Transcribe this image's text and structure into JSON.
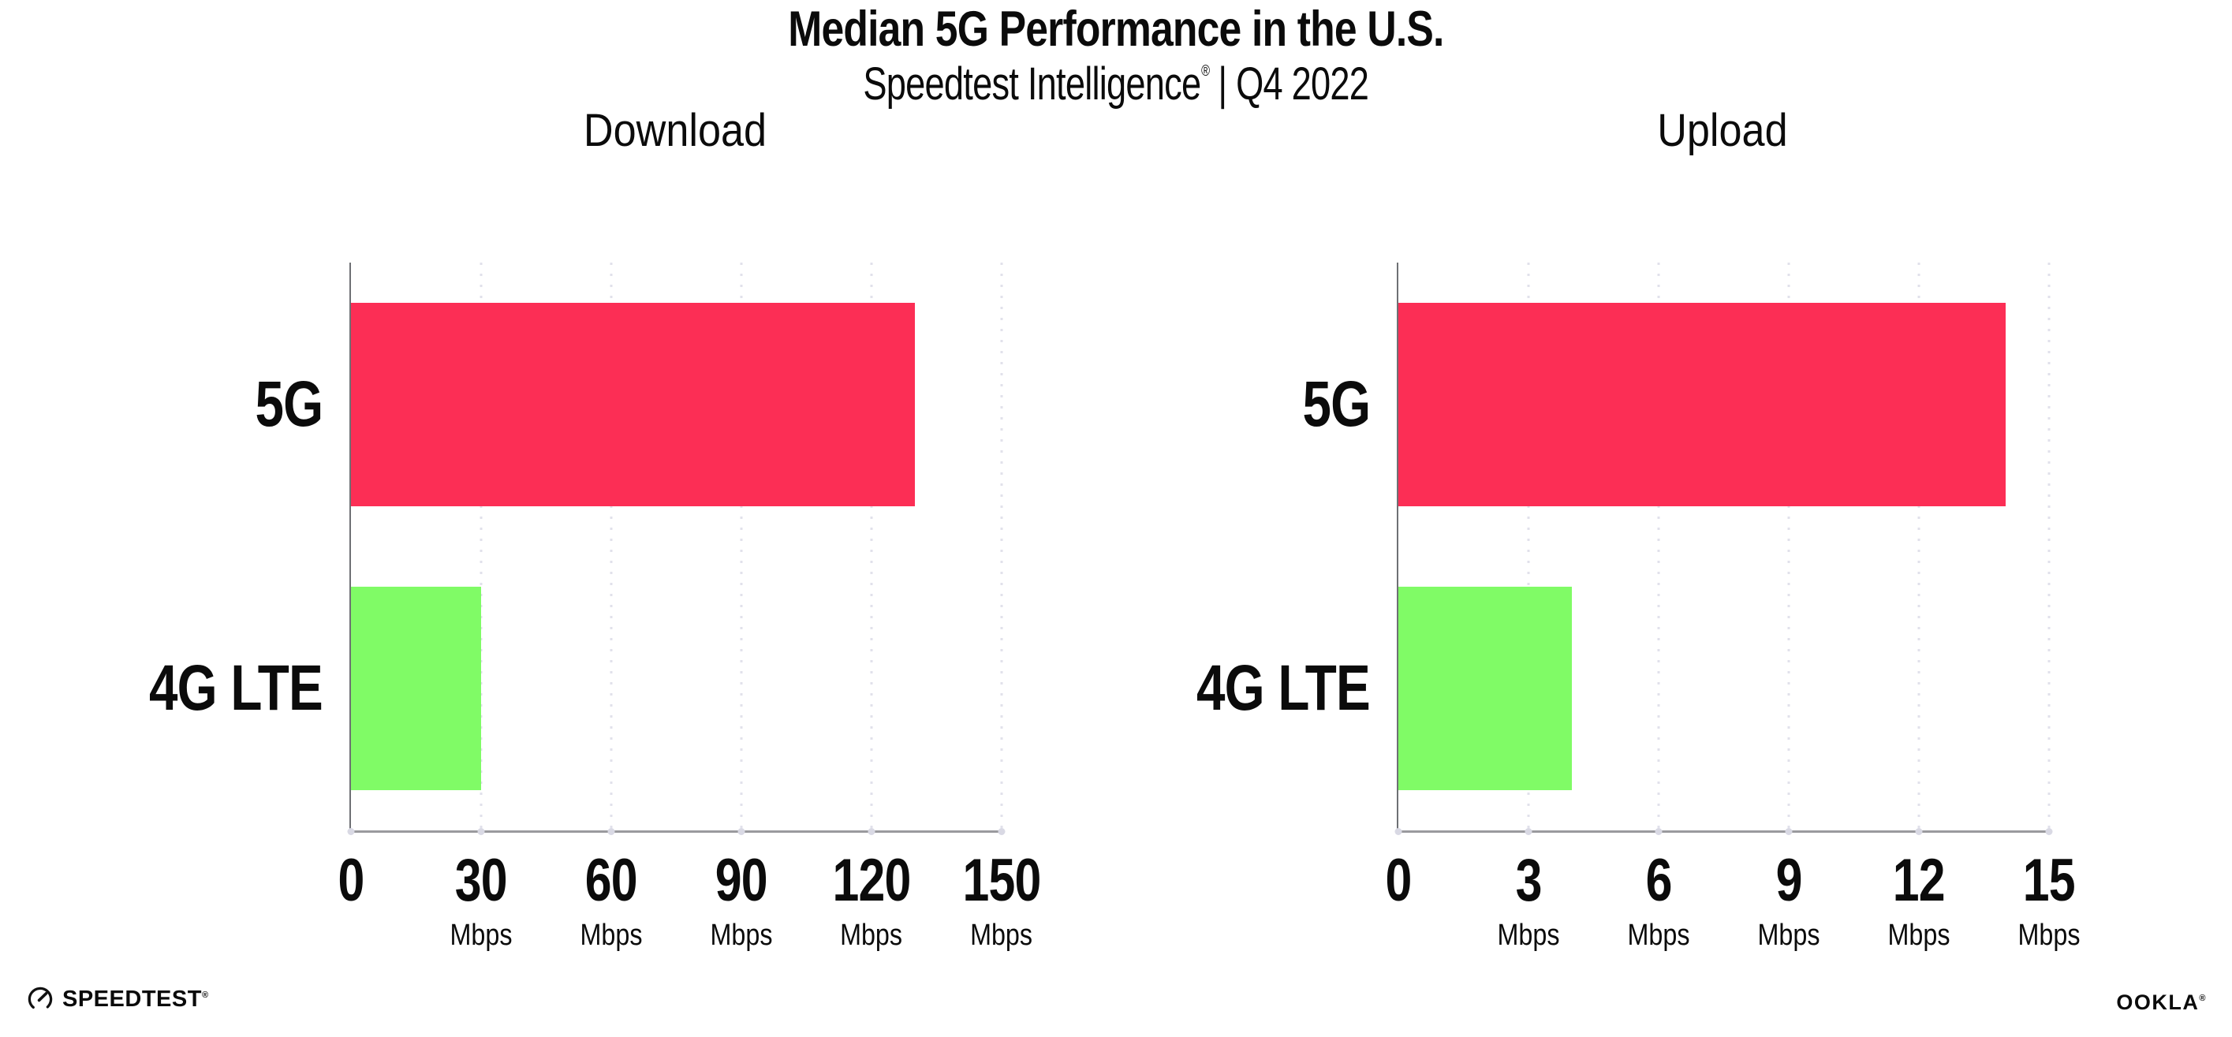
{
  "header": {
    "title": "Median 5G Performance in the U.S.",
    "subtitle_brand": "Speedtest Intelligence",
    "subtitle_reg": "®",
    "subtitle_rest": " | Q4 2022"
  },
  "colors": {
    "bar_5g": "#fc2e55",
    "bar_4g_lte": "#80fb66",
    "axis_line": "#9a9a9e",
    "axis_spine": "#6e7074",
    "gridline": "#e1e1eb",
    "text": "#0b0b0b"
  },
  "chart_data": [
    {
      "type": "bar",
      "orientation": "horizontal",
      "title": "Download",
      "categories": [
        "5G",
        "4G LTE"
      ],
      "values": [
        130,
        30
      ],
      "unit": "Mbps",
      "xlim": [
        0,
        150
      ],
      "xticks": [
        0,
        30,
        60,
        90,
        120,
        150
      ],
      "tick_unit_label": "Mbps",
      "grid": "dotted-vertical",
      "legend": "none",
      "bar_colors": [
        "#fc2e55",
        "#80fb66"
      ]
    },
    {
      "type": "bar",
      "orientation": "horizontal",
      "title": "Upload",
      "categories": [
        "5G",
        "4G LTE"
      ],
      "values": [
        14,
        4
      ],
      "unit": "Mbps",
      "xlim": [
        0,
        15
      ],
      "xticks": [
        0,
        3,
        6,
        9,
        12,
        15
      ],
      "tick_unit_label": "Mbps",
      "grid": "dotted-vertical",
      "legend": "none",
      "bar_colors": [
        "#fc2e55",
        "#80fb66"
      ]
    }
  ],
  "footer": {
    "speedtest_label": "SPEEDTEST",
    "speedtest_mark": "®",
    "speedtest_icon": "speedometer-gauge-icon",
    "ookla_label": "OOKLA",
    "ookla_mark": "®"
  }
}
